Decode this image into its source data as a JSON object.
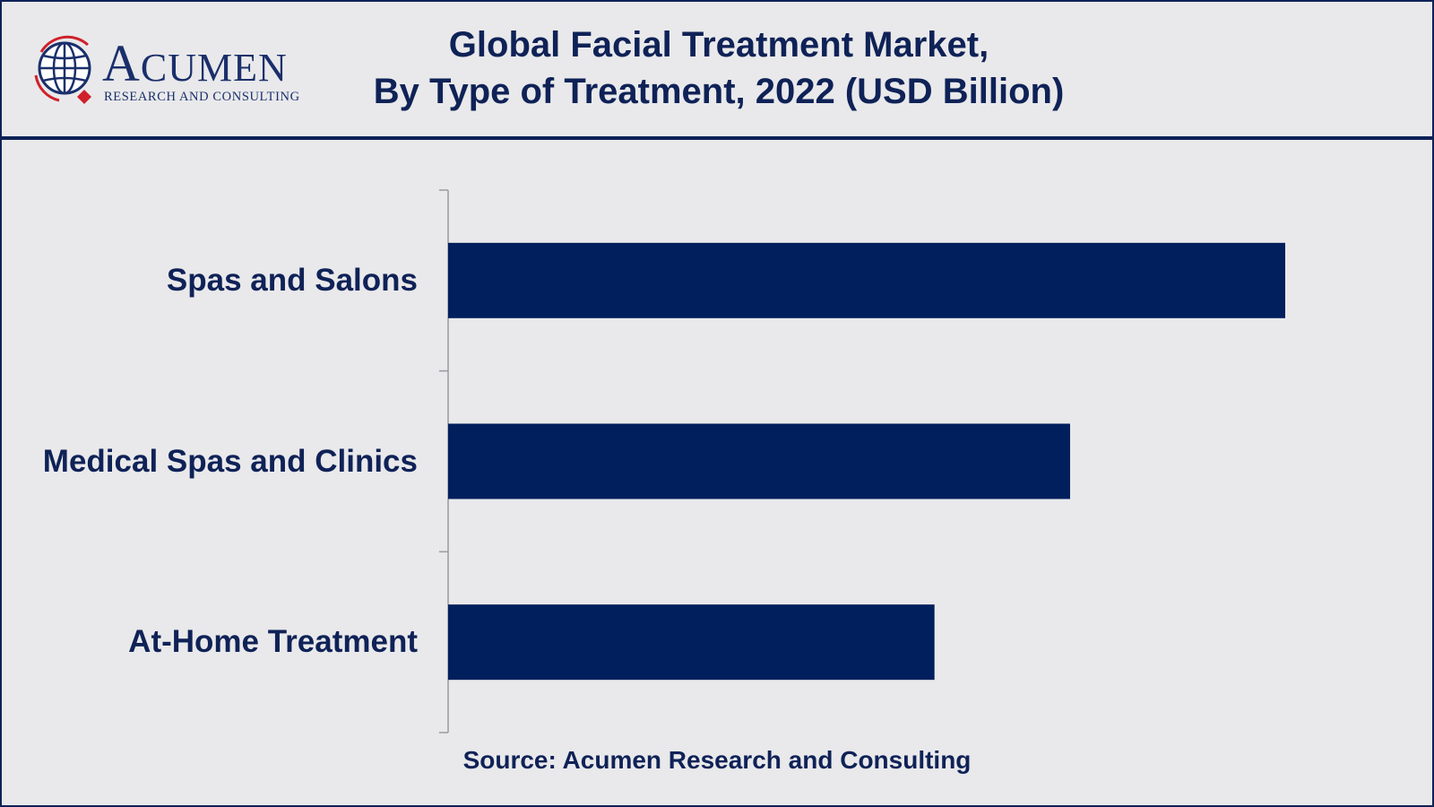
{
  "header": {
    "title_line1": "Global Facial Treatment Market,",
    "title_line2": "By Type of Treatment, 2022 (USD Billion)"
  },
  "logo": {
    "word_initial": "A",
    "word_rest": "CUMEN",
    "tagline": "RESEARCH AND CONSULTING"
  },
  "colors": {
    "bar": "#001f5c",
    "text": "#0f2257",
    "background": "#e9e9eb",
    "logo_accent": "#d0202a"
  },
  "chart_data": {
    "type": "bar",
    "orientation": "horizontal",
    "title": "Global Facial Treatment Market, By Type of Treatment, 2022 (USD Billion)",
    "categories": [
      "Spas and Salons",
      "Medical Spas and Clinics",
      "At-Home Treatment"
    ],
    "values": [
      100,
      74.3,
      58.1
    ],
    "xlim": [
      0,
      100
    ],
    "grid": false,
    "legend": "none"
  },
  "source": "Source: Acumen Research and Consulting"
}
